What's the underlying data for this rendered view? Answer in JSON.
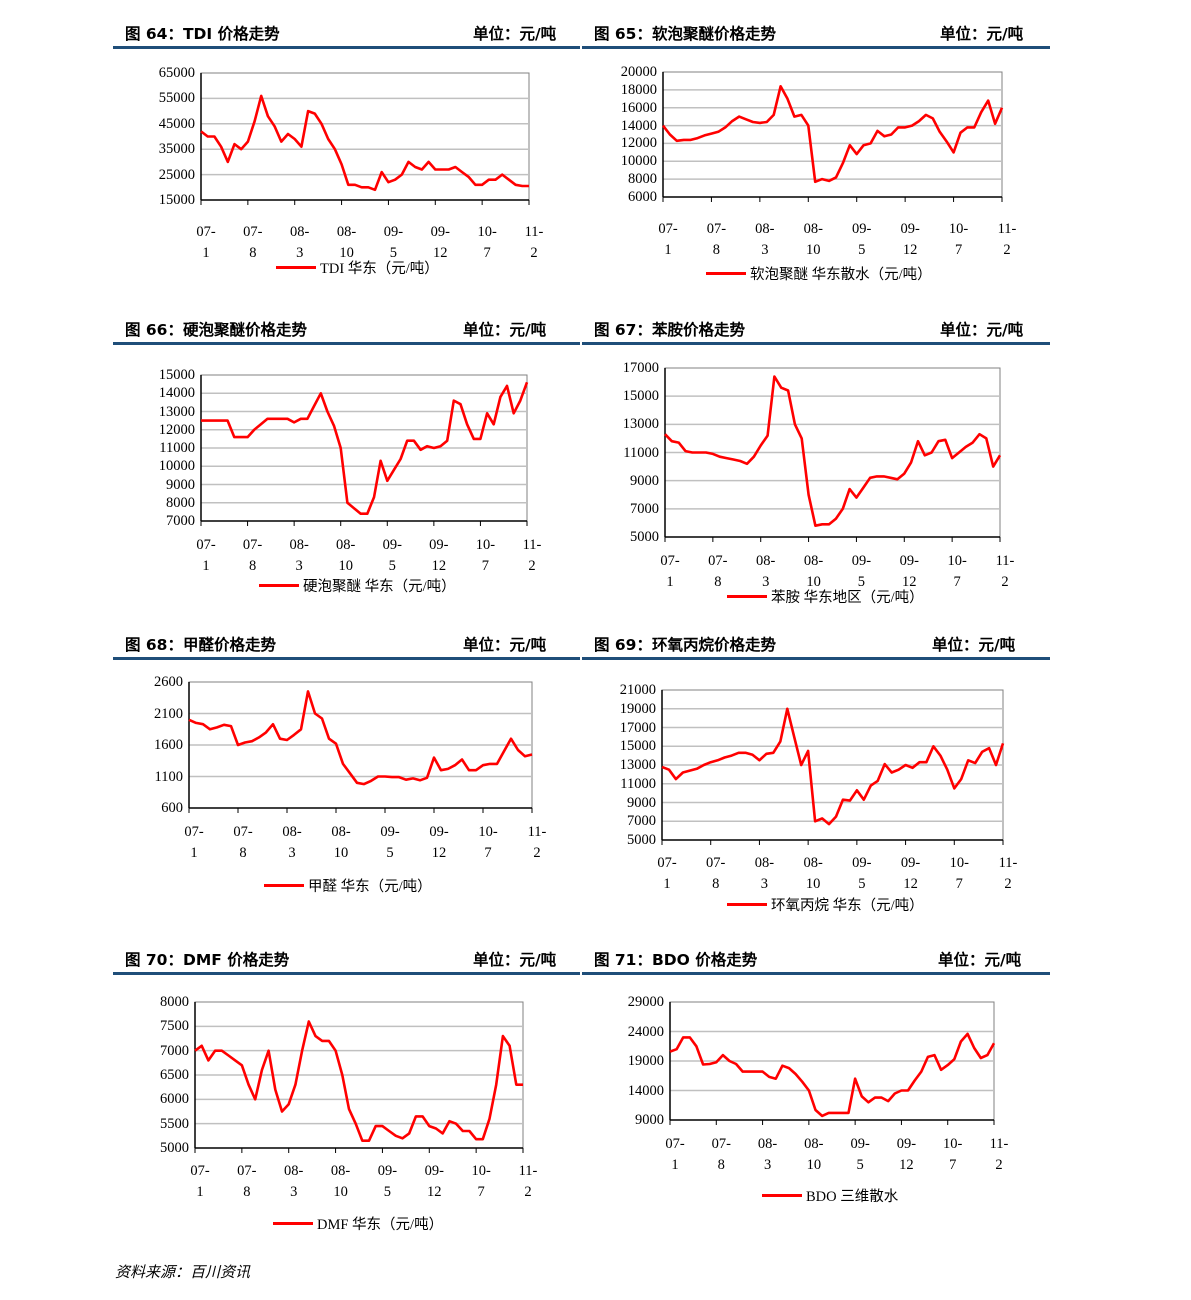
{
  "source": "资料来源：百川资讯",
  "line_color": "#ff0000",
  "header_rule_color": "#1f4e79",
  "chart_data": [
    {
      "type": "line",
      "title": "图 64：TDI 价格走势",
      "unit": "单位：元/吨",
      "legend": "TDI  华东（元/吨）",
      "frequency": "monthly",
      "start": "2007-01",
      "end": "2011-02",
      "y_ticks": [
        15000,
        25000,
        35000,
        45000,
        55000,
        65000
      ],
      "ylim": [
        15000,
        65000
      ],
      "grid": true,
      "x_ticks": [
        [
          "07-",
          "1"
        ],
        [
          "07-",
          "8"
        ],
        [
          "08-",
          "3"
        ],
        [
          "08-",
          "10"
        ],
        [
          "09-",
          "5"
        ],
        [
          "09-",
          "12"
        ],
        [
          "10-",
          "7"
        ],
        [
          "11-",
          "2"
        ]
      ],
      "values": [
        42000,
        40000,
        40000,
        36000,
        30000,
        37000,
        35000,
        38000,
        46000,
        56000,
        48000,
        44000,
        38000,
        41000,
        39000,
        36000,
        50000,
        49000,
        45000,
        39000,
        35000,
        29000,
        21000,
        21000,
        20000,
        20000,
        19000,
        26000,
        22000,
        23000,
        25000,
        30000,
        28000,
        27000,
        30000,
        27000,
        27000,
        27000,
        28000,
        26000,
        24000,
        21000,
        21000,
        23000,
        23000,
        25000,
        23000,
        21000,
        20500,
        20500
      ]
    },
    {
      "type": "line",
      "title": "图 65：软泡聚醚价格走势",
      "unit": "单位：元/吨",
      "legend": "软泡聚醚  华东散水（元/吨）",
      "frequency": "monthly",
      "start": "2007-01",
      "end": "2011-02",
      "y_ticks": [
        6000,
        8000,
        10000,
        12000,
        14000,
        16000,
        18000,
        20000
      ],
      "ylim": [
        6000,
        20000
      ],
      "grid": true,
      "x_ticks": [
        [
          "07-",
          "1"
        ],
        [
          "07-",
          "8"
        ],
        [
          "08-",
          "3"
        ],
        [
          "08-",
          "10"
        ],
        [
          "09-",
          "5"
        ],
        [
          "09-",
          "12"
        ],
        [
          "10-",
          "7"
        ],
        [
          "11-",
          "2"
        ]
      ],
      "values": [
        14000,
        13000,
        12300,
        12400,
        12400,
        12600,
        12900,
        13100,
        13300,
        13800,
        14500,
        15000,
        14700,
        14400,
        14300,
        14400,
        15200,
        18400,
        17000,
        15000,
        15200,
        14000,
        7700,
        8000,
        7800,
        8200,
        9800,
        11800,
        10800,
        11800,
        12000,
        13400,
        12800,
        13000,
        13800,
        13800,
        14000,
        14500,
        15200,
        14800,
        13300,
        12200,
        11000,
        13200,
        13800,
        13800,
        15500,
        16800,
        14200,
        16000
      ]
    },
    {
      "type": "line",
      "title": "图 66：硬泡聚醚价格走势",
      "unit": "单位：元/吨",
      "legend": "硬泡聚醚  华东（元/吨）",
      "frequency": "monthly",
      "start": "2007-01",
      "end": "2011-02",
      "y_ticks": [
        7000,
        8000,
        9000,
        10000,
        11000,
        12000,
        13000,
        14000,
        15000
      ],
      "ylim": [
        7000,
        15000
      ],
      "grid": true,
      "x_ticks": [
        [
          "07-",
          "1"
        ],
        [
          "07-",
          "8"
        ],
        [
          "08-",
          "3"
        ],
        [
          "08-",
          "10"
        ],
        [
          "09-",
          "5"
        ],
        [
          "09-",
          "12"
        ],
        [
          "10-",
          "7"
        ],
        [
          "11-",
          "2"
        ]
      ],
      "values": [
        12500,
        12500,
        12500,
        12500,
        12500,
        11600,
        11600,
        11600,
        12000,
        12300,
        12600,
        12600,
        12600,
        12600,
        12400,
        12600,
        12600,
        13300,
        14000,
        13000,
        12200,
        11000,
        8000,
        7700,
        7400,
        7400,
        8300,
        10300,
        9200,
        9800,
        10400,
        11400,
        11400,
        10900,
        11100,
        11000,
        11100,
        11400,
        13600,
        13400,
        12300,
        11500,
        11500,
        12900,
        12300,
        13800,
        14400,
        12900,
        13600,
        14600
      ]
    },
    {
      "type": "line",
      "title": "图 67：苯胺价格走势",
      "unit": "单位：元/吨",
      "legend": "苯胺  华东地区（元/吨）",
      "frequency": "monthly",
      "start": "2007-01",
      "end": "2011-02",
      "y_ticks": [
        5000,
        7000,
        9000,
        11000,
        13000,
        15000,
        17000
      ],
      "ylim": [
        5000,
        17000
      ],
      "grid": true,
      "x_ticks": [
        [
          "07-",
          "1"
        ],
        [
          "07-",
          "8"
        ],
        [
          "08-",
          "3"
        ],
        [
          "08-",
          "10"
        ],
        [
          "09-",
          "5"
        ],
        [
          "09-",
          "12"
        ],
        [
          "10-",
          "7"
        ],
        [
          "11-",
          "2"
        ]
      ],
      "values": [
        12300,
        11800,
        11700,
        11100,
        11000,
        11000,
        11000,
        10900,
        10700,
        10600,
        10500,
        10400,
        10200,
        10700,
        11500,
        12200,
        16400,
        15600,
        15400,
        13000,
        12000,
        8000,
        5800,
        5900,
        5900,
        6300,
        7000,
        8400,
        7800,
        8500,
        9200,
        9300,
        9300,
        9200,
        9100,
        9500,
        10300,
        11800,
        10800,
        11000,
        11800,
        11900,
        10600,
        11000,
        11400,
        11700,
        12300,
        12000,
        10000,
        10800
      ]
    },
    {
      "type": "line",
      "title": "图 68：甲醛价格走势",
      "unit": "单位：元/吨",
      "legend": "甲醛  华东（元/吨）",
      "frequency": "monthly",
      "start": "2007-01",
      "end": "2011-02",
      "y_ticks": [
        600,
        1100,
        1600,
        2100,
        2600
      ],
      "ylim": [
        600,
        2600
      ],
      "grid": true,
      "x_ticks": [
        [
          "07-",
          "1"
        ],
        [
          "07-",
          "8"
        ],
        [
          "08-",
          "3"
        ],
        [
          "08-",
          "10"
        ],
        [
          "09-",
          "5"
        ],
        [
          "09-",
          "12"
        ],
        [
          "10-",
          "7"
        ],
        [
          "11-",
          "2"
        ]
      ],
      "values": [
        2000,
        1950,
        1930,
        1850,
        1880,
        1920,
        1900,
        1600,
        1640,
        1660,
        1720,
        1800,
        1930,
        1700,
        1680,
        1760,
        1850,
        2450,
        2100,
        2020,
        1700,
        1620,
        1300,
        1150,
        1000,
        980,
        1030,
        1100,
        1100,
        1090,
        1090,
        1050,
        1070,
        1040,
        1080,
        1400,
        1200,
        1220,
        1280,
        1370,
        1200,
        1200,
        1280,
        1300,
        1300,
        1500,
        1700,
        1520,
        1420,
        1450
      ]
    },
    {
      "type": "line",
      "title": "图 69：环氧丙烷价格走势",
      "unit": "单位：元/吨",
      "legend": "环氧丙烷  华东（元/吨）",
      "frequency": "monthly",
      "start": "2007-01",
      "end": "2011-02",
      "y_ticks": [
        5000,
        7000,
        9000,
        11000,
        13000,
        15000,
        17000,
        19000,
        21000
      ],
      "ylim": [
        5000,
        21000
      ],
      "grid": true,
      "x_ticks": [
        [
          "07-",
          "1"
        ],
        [
          "07-",
          "8"
        ],
        [
          "08-",
          "3"
        ],
        [
          "08-",
          "10"
        ],
        [
          "09-",
          "5"
        ],
        [
          "09-",
          "12"
        ],
        [
          "10-",
          "7"
        ],
        [
          "11-",
          "2"
        ]
      ],
      "values": [
        12800,
        12500,
        11500,
        12200,
        12400,
        12600,
        13000,
        13300,
        13500,
        13800,
        14000,
        14300,
        14300,
        14100,
        13500,
        14200,
        14300,
        15500,
        19000,
        16000,
        13000,
        14500,
        7000,
        7300,
        6700,
        7500,
        9300,
        9200,
        10300,
        9300,
        10800,
        11300,
        13100,
        12200,
        12500,
        13000,
        12700,
        13300,
        13300,
        15000,
        14000,
        12500,
        10500,
        11500,
        13500,
        13200,
        14400,
        14800,
        13000,
        15300
      ]
    },
    {
      "type": "line",
      "title": "图 70：DMF 价格走势",
      "unit": "单位：元/吨",
      "legend": "DMF  华东（元/吨）",
      "frequency": "monthly",
      "start": "2007-01",
      "end": "2011-02",
      "y_ticks": [
        5000,
        5500,
        6000,
        6500,
        7000,
        7500,
        8000
      ],
      "ylim": [
        5000,
        8000
      ],
      "grid": true,
      "x_ticks": [
        [
          "07-",
          "1"
        ],
        [
          "07-",
          "8"
        ],
        [
          "08-",
          "3"
        ],
        [
          "08-",
          "10"
        ],
        [
          "09-",
          "5"
        ],
        [
          "09-",
          "12"
        ],
        [
          "10-",
          "7"
        ],
        [
          "11-",
          "2"
        ]
      ],
      "values": [
        7000,
        7100,
        6800,
        7000,
        7000,
        6900,
        6800,
        6700,
        6300,
        6000,
        6600,
        7000,
        6200,
        5750,
        5900,
        6300,
        7000,
        7600,
        7300,
        7200,
        7200,
        7000,
        6500,
        5800,
        5500,
        5150,
        5150,
        5450,
        5450,
        5350,
        5250,
        5200,
        5300,
        5650,
        5650,
        5450,
        5400,
        5300,
        5550,
        5500,
        5350,
        5350,
        5180,
        5180,
        5600,
        6300,
        7300,
        7100,
        6300,
        6300
      ]
    },
    {
      "type": "line",
      "title": "图 71：BDO 价格走势",
      "unit": "单位：元/吨",
      "legend": "BDO  三维散水",
      "frequency": "monthly",
      "start": "2007-01",
      "end": "2011-02",
      "y_ticks": [
        9000,
        14000,
        19000,
        24000,
        29000
      ],
      "ylim": [
        9000,
        29000
      ],
      "grid": true,
      "x_ticks": [
        [
          "07-",
          "1"
        ],
        [
          "07-",
          "8"
        ],
        [
          "08-",
          "3"
        ],
        [
          "08-",
          "10"
        ],
        [
          "09-",
          "5"
        ],
        [
          "09-",
          "12"
        ],
        [
          "10-",
          "7"
        ],
        [
          "11-",
          "2"
        ]
      ],
      "values": [
        20600,
        21000,
        23000,
        23000,
        21500,
        18400,
        18500,
        18800,
        20000,
        19000,
        18500,
        17200,
        17200,
        17200,
        17200,
        16300,
        16000,
        18200,
        17800,
        16800,
        15500,
        14000,
        10700,
        9700,
        10200,
        10200,
        10200,
        10200,
        16000,
        13000,
        12000,
        12800,
        12800,
        12200,
        13500,
        14000,
        14000,
        15700,
        17200,
        19700,
        20000,
        17500,
        18300,
        19300,
        22300,
        23600,
        21200,
        19500,
        20000,
        22000
      ]
    }
  ]
}
